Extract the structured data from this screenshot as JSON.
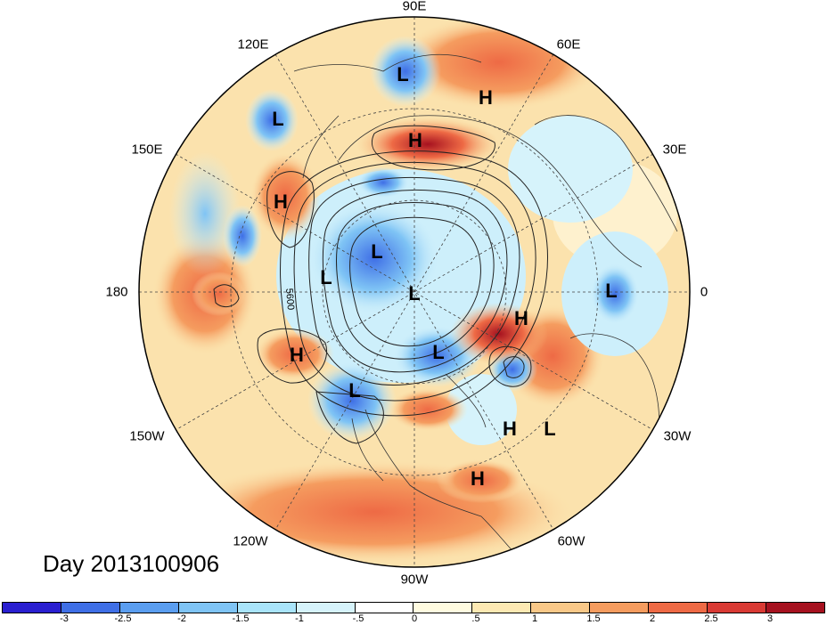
{
  "day_label": "Day 2013100906",
  "longitude_labels": {
    "lon_90e": "90E",
    "lon_60e": "60E",
    "lon_30e": "30E",
    "lon_0": "0",
    "lon_30w": "30W",
    "lon_60w": "60W",
    "lon_90w": "90W",
    "lon_120w": "120W",
    "lon_150w": "150W",
    "lon_180": "180",
    "lon_150e": "150E",
    "lon_120e": "120E"
  },
  "contour_label": "5600",
  "pressure_centers": [
    {
      "type": "L"
    },
    {
      "type": "H"
    },
    {
      "type": "L"
    },
    {
      "type": "H"
    },
    {
      "type": "H"
    },
    {
      "type": "L"
    },
    {
      "type": "L"
    },
    {
      "type": "L"
    },
    {
      "type": "L"
    },
    {
      "type": "H"
    },
    {
      "type": "H"
    },
    {
      "type": "L"
    },
    {
      "type": "L"
    },
    {
      "type": "H"
    },
    {
      "type": "L"
    },
    {
      "type": "H"
    }
  ],
  "colorbar": {
    "colors": [
      "#2a1fd0",
      "#3f6fe6",
      "#5b9ef0",
      "#7fc4f5",
      "#a9e4fa",
      "#d6f3fb",
      "#fffbe0",
      "#fde9b3",
      "#f9c888",
      "#f59c5f",
      "#ee6a45",
      "#d93a34",
      "#a6111f"
    ],
    "tick_labels": [
      "-3",
      "-2.5",
      "-2",
      "-1.5",
      "-1",
      "-.5",
      "0",
      ".5",
      "1",
      "1.5",
      "2",
      "2.5",
      "3"
    ]
  }
}
